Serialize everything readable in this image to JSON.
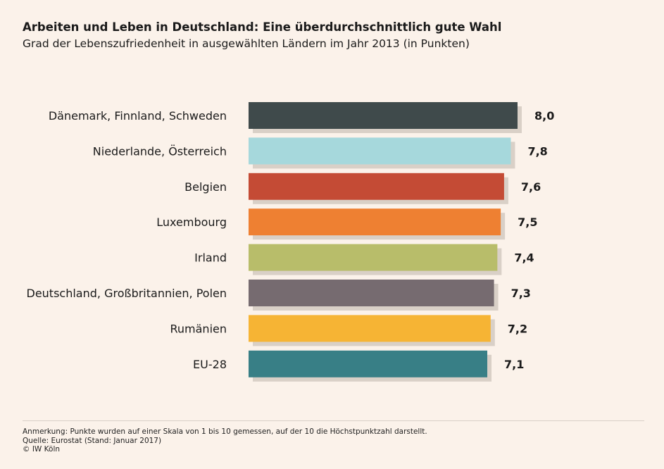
{
  "header": {
    "title": "Arbeiten und Leben in Deutschland: Eine überdurchschnittlich gute Wahl",
    "subtitle": "Grad der Lebenszufriedenheit in ausgewählten Ländern im Jahr 2013 (in Punkten)"
  },
  "chart_data": {
    "type": "bar",
    "orientation": "horizontal",
    "title": "Arbeiten und Leben in Deutschland: Eine überdurchschnittlich gute Wahl",
    "subtitle": "Grad der Lebenszufriedenheit in ausgewählten Ländern im Jahr 2013 (in Punkten)",
    "categories": [
      "Dänemark, Finnland, Schweden",
      "Niederlande, Österreich",
      "Belgien",
      "Luxembourg",
      "Irland",
      "Deutschland, Großbritannien, Polen",
      "Rumänien",
      "EU-28"
    ],
    "values": [
      8.0,
      7.8,
      7.6,
      7.5,
      7.4,
      7.3,
      7.2,
      7.1
    ],
    "value_labels": [
      "8,0",
      "7,8",
      "7,6",
      "7,5",
      "7,4",
      "7,3",
      "7,2",
      "7,1"
    ],
    "colors": [
      "#3f4a4b",
      "#a6d8dc",
      "#c44b35",
      "#ee8032",
      "#b8bd6a",
      "#766b70",
      "#f6b434",
      "#387f86"
    ],
    "shadow_color": "#d9d0c7",
    "xlim": [
      0,
      10
    ],
    "grid": false,
    "legend": "none",
    "xlabel": "",
    "ylabel": ""
  },
  "footer": {
    "note": "Anmerkung: Punkte wurden auf einer Skala von 1 bis 10 gemessen, auf der 10 die Höchstpunktzahl darstellt.",
    "source": "Quelle: Eurostat (Stand: Januar 2017)",
    "copyright": "© IW Köln"
  }
}
